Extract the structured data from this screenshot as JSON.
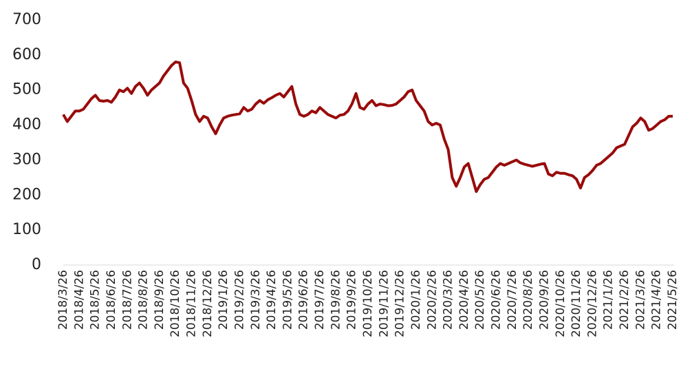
{
  "chart_data": {
    "type": "line",
    "categories": [
      "2018/3/26",
      null,
      null,
      null,
      "2018/4/26",
      null,
      null,
      null,
      "2018/5/26",
      null,
      null,
      null,
      "2018/6/26",
      null,
      null,
      null,
      "2018/7/26",
      null,
      null,
      null,
      "2018/8/26",
      null,
      null,
      null,
      "2018/9/26",
      null,
      null,
      null,
      "2018/10/26",
      null,
      null,
      null,
      "2018/11/26",
      null,
      null,
      null,
      "2018/12/26",
      null,
      null,
      null,
      "2019/1/26",
      null,
      null,
      null,
      "2019/2/26",
      null,
      null,
      null,
      "2019/3/26",
      null,
      null,
      null,
      "2019/4/26",
      null,
      null,
      null,
      "2019/5/26",
      null,
      null,
      null,
      "2019/6/26",
      null,
      null,
      null,
      "2019/7/26",
      null,
      null,
      null,
      "2019/8/26",
      null,
      null,
      null,
      "2019/9/26",
      null,
      null,
      null,
      "2019/10/26",
      null,
      null,
      null,
      "2019/11/26",
      null,
      null,
      null,
      "2019/12/26",
      null,
      null,
      null,
      "2020/1/26",
      null,
      null,
      null,
      "2020/2/26",
      null,
      null,
      null,
      "2020/3/26",
      null,
      null,
      null,
      "2020/4/26",
      null,
      null,
      null,
      "2020/5/26",
      null,
      null,
      null,
      "2020/6/26",
      null,
      null,
      null,
      "2020/7/26",
      null,
      null,
      null,
      "2020/8/26",
      null,
      null,
      null,
      "2020/9/26",
      null,
      null,
      null,
      "2020/10/26",
      null,
      null,
      null,
      "2020/11/26",
      null,
      null,
      null,
      "2020/12/26",
      null,
      null,
      null,
      "2021/1/26",
      null,
      null,
      null,
      "2021/2/26",
      null,
      null,
      null,
      "2021/3/26",
      null,
      null,
      null,
      "2021/4/26",
      null,
      null,
      null,
      "2021/5/26"
    ],
    "series": [
      {
        "color": "#990b0b",
        "values": [
          430,
          410,
          425,
          440,
          440,
          445,
          460,
          475,
          485,
          470,
          468,
          470,
          465,
          480,
          500,
          495,
          505,
          490,
          510,
          520,
          505,
          485,
          500,
          510,
          520,
          540,
          555,
          570,
          580,
          578,
          520,
          505,
          470,
          430,
          410,
          425,
          420,
          395,
          375,
          400,
          420,
          425,
          428,
          430,
          432,
          450,
          440,
          445,
          460,
          470,
          462,
          472,
          478,
          485,
          490,
          480,
          495,
          510,
          460,
          430,
          425,
          430,
          440,
          435,
          450,
          440,
          430,
          425,
          420,
          428,
          430,
          440,
          460,
          490,
          450,
          445,
          460,
          470,
          455,
          460,
          458,
          455,
          456,
          460,
          470,
          480,
          495,
          500,
          470,
          455,
          440,
          410,
          400,
          405,
          400,
          360,
          330,
          250,
          225,
          250,
          280,
          290,
          250,
          210,
          230,
          245,
          250,
          265,
          280,
          290,
          285,
          290,
          295,
          300,
          292,
          288,
          285,
          282,
          285,
          288,
          290,
          260,
          255,
          265,
          262,
          262,
          258,
          255,
          245,
          220,
          250,
          258,
          270,
          285,
          290,
          300,
          310,
          320,
          335,
          340,
          345,
          370,
          395,
          405,
          420,
          410,
          385,
          390,
          400,
          410,
          415,
          425,
          425
        ]
      }
    ],
    "ylim": [
      0,
      700
    ],
    "yticks": [
      0,
      100,
      200,
      300,
      400,
      500,
      600,
      700
    ]
  }
}
